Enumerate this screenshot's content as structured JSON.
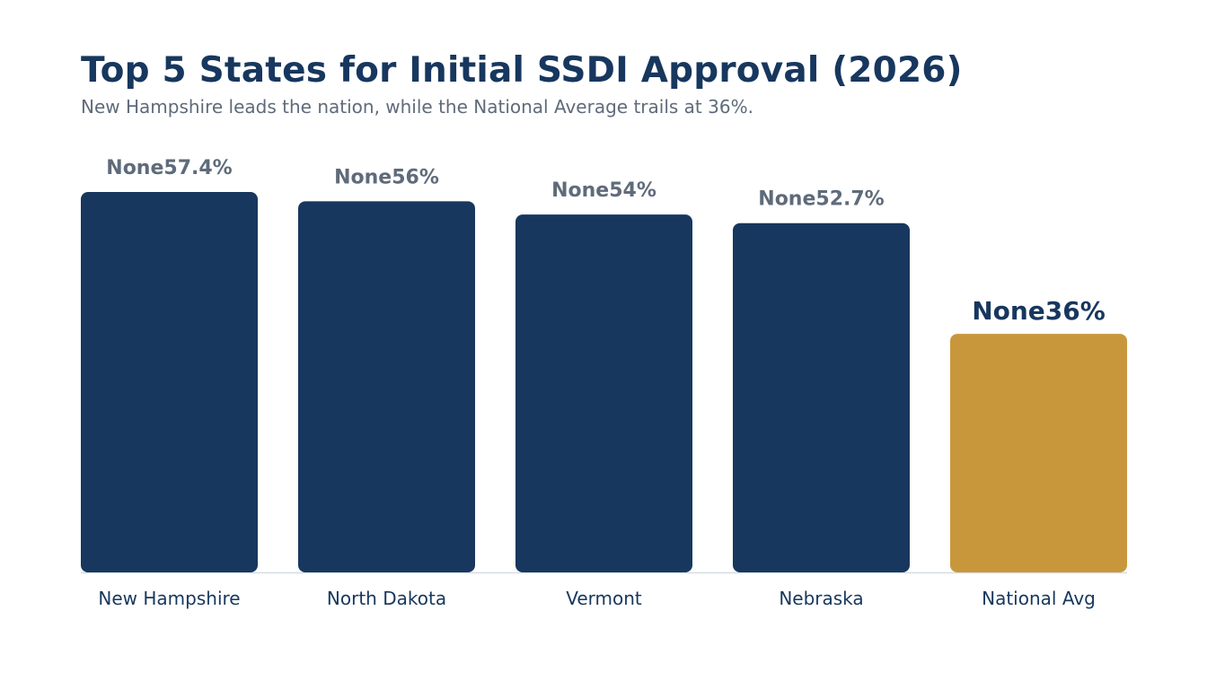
{
  "header": {
    "title": "Top 5 States for Initial SSDI Approval (2026)",
    "subtitle": "New Hampshire leads the nation, while the National Average trails at 36%."
  },
  "colors": {
    "primary": "#17375e",
    "highlight": "#c9973b",
    "muted_label": "#5f6b7a",
    "baseline": "#d6dce4"
  },
  "chart_data": {
    "type": "bar",
    "title": "Top 5 States for Initial SSDI Approval (2026)",
    "subtitle": "New Hampshire leads the nation, while the National Average trails at 36%.",
    "categories": [
      "New Hampshire",
      "North Dakota",
      "Vermont",
      "Nebraska",
      "National Avg"
    ],
    "values": [
      57.4,
      56,
      54,
      52.7,
      36
    ],
    "value_labels": [
      "None57.4%",
      "None56%",
      "None54%",
      "None52.7%",
      "None36%"
    ],
    "highlight_index": 4,
    "xlabel": "",
    "ylabel": "",
    "ylim": [
      0,
      57.4
    ],
    "grid": false,
    "legend": "none"
  }
}
